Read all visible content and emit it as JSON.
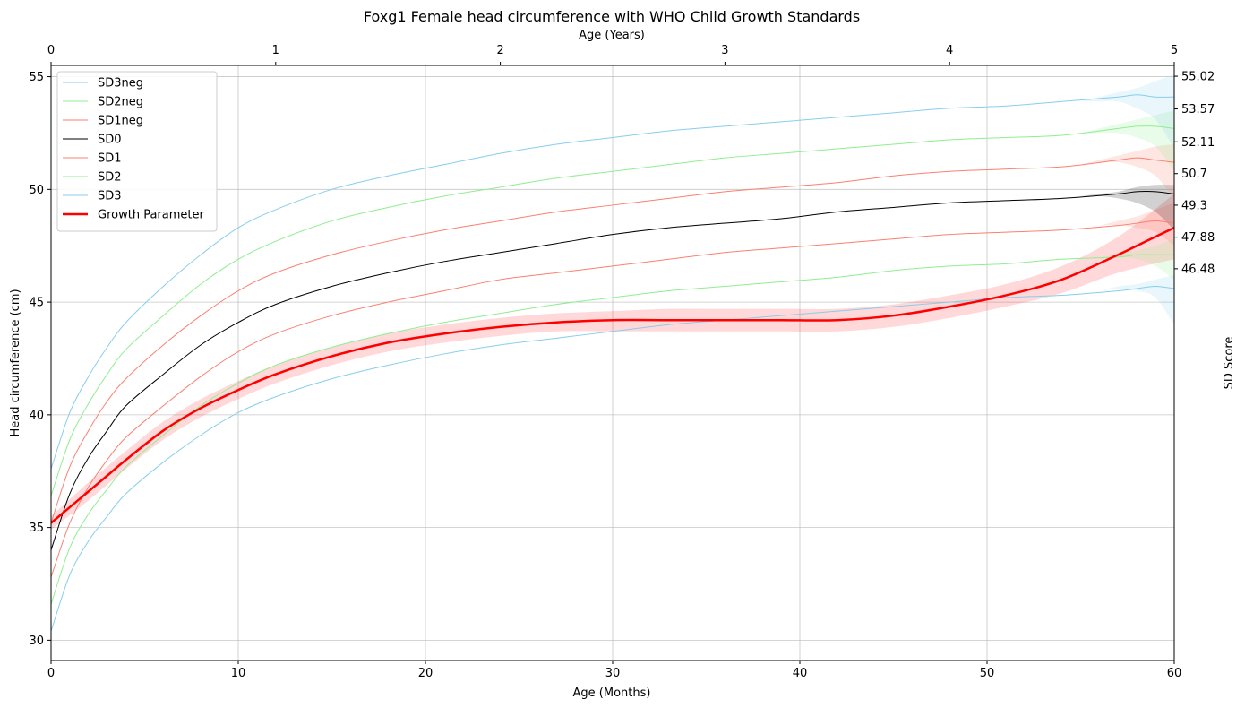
{
  "chart_data": {
    "type": "line",
    "title": "Foxg1 Female head circumference with WHO Child Growth Standards",
    "xlabel": "Age (Months)",
    "ylabel": "Head circumference (cm)",
    "x2label": "Age (Years)",
    "y2label": "SD Score",
    "xlim": [
      0,
      60
    ],
    "ylim": [
      29.1,
      55.5
    ],
    "x2lim": [
      0,
      5
    ],
    "xticks": [
      0,
      10,
      20,
      30,
      40,
      50,
      60
    ],
    "yticks": [
      30,
      35,
      40,
      45,
      50,
      55
    ],
    "x2ticks": [
      0,
      1,
      2,
      3,
      4,
      5
    ],
    "y2ticks": [
      {
        "value": 55.02,
        "label": "55.02"
      },
      {
        "value": 53.57,
        "label": "53.57"
      },
      {
        "value": 52.11,
        "label": "52.11"
      },
      {
        "value": 50.7,
        "label": "50.7"
      },
      {
        "value": 49.3,
        "label": "49.3"
      },
      {
        "value": 47.88,
        "label": "47.88"
      },
      {
        "value": 46.48,
        "label": "46.48"
      }
    ],
    "grid": true,
    "legend_position": "top-left",
    "x": [
      0,
      1,
      2,
      3,
      4,
      6,
      8,
      10,
      12,
      15,
      18,
      21,
      24,
      27,
      30,
      33,
      36,
      39,
      42,
      45,
      48,
      51,
      54,
      57,
      58,
      59,
      60
    ],
    "series": [
      {
        "name": "SD3neg",
        "color": "#87ceeb",
        "width": 1,
        "values": [
          30.4,
          32.9,
          34.4,
          35.5,
          36.5,
          37.9,
          39.1,
          40.1,
          40.8,
          41.6,
          42.2,
          42.7,
          43.1,
          43.4,
          43.7,
          44.0,
          44.2,
          44.4,
          44.6,
          44.8,
          45.0,
          45.2,
          45.3,
          45.5,
          45.6,
          45.7,
          45.6
        ]
      },
      {
        "name": "SD2neg",
        "color": "#90ee90",
        "width": 1,
        "values": [
          31.6,
          34.1,
          35.6,
          36.7,
          37.7,
          39.1,
          40.4,
          41.4,
          42.2,
          43.0,
          43.6,
          44.1,
          44.5,
          44.9,
          45.2,
          45.5,
          45.7,
          45.9,
          46.1,
          46.4,
          46.6,
          46.7,
          46.9,
          47.0,
          47.1,
          47.1,
          47.1
        ]
      },
      {
        "name": "SD1neg",
        "color": "#fa8072",
        "width": 1,
        "values": [
          32.8,
          35.2,
          36.8,
          38.0,
          39.0,
          40.4,
          41.7,
          42.8,
          43.6,
          44.4,
          45.0,
          45.5,
          46.0,
          46.3,
          46.6,
          46.9,
          47.2,
          47.4,
          47.6,
          47.8,
          48.0,
          48.1,
          48.2,
          48.4,
          48.5,
          48.6,
          48.5
        ]
      },
      {
        "name": "SD0",
        "color": "#000000",
        "width": 1,
        "values": [
          34.0,
          36.5,
          38.1,
          39.3,
          40.4,
          41.8,
          43.1,
          44.1,
          44.9,
          45.7,
          46.3,
          46.8,
          47.2,
          47.6,
          48.0,
          48.3,
          48.5,
          48.7,
          49.0,
          49.2,
          49.4,
          49.5,
          49.6,
          49.8,
          49.9,
          49.9,
          49.8
        ]
      },
      {
        "name": "SD1",
        "color": "#fa8072",
        "width": 1,
        "values": [
          35.2,
          37.7,
          39.3,
          40.6,
          41.6,
          43.1,
          44.4,
          45.5,
          46.3,
          47.1,
          47.7,
          48.2,
          48.6,
          49.0,
          49.3,
          49.6,
          49.9,
          50.1,
          50.3,
          50.6,
          50.8,
          50.9,
          51.0,
          51.3,
          51.4,
          51.3,
          51.2
        ]
      },
      {
        "name": "SD2",
        "color": "#90ee90",
        "width": 1,
        "values": [
          36.4,
          38.9,
          40.5,
          41.8,
          42.9,
          44.4,
          45.8,
          46.9,
          47.7,
          48.6,
          49.2,
          49.7,
          50.1,
          50.5,
          50.8,
          51.1,
          51.4,
          51.6,
          51.8,
          52.0,
          52.2,
          52.3,
          52.4,
          52.7,
          52.8,
          52.8,
          52.7
        ]
      },
      {
        "name": "SD3",
        "color": "#87ceeb",
        "width": 1,
        "values": [
          37.6,
          40.1,
          41.7,
          43.0,
          44.1,
          45.7,
          47.1,
          48.3,
          49.1,
          50.0,
          50.6,
          51.1,
          51.6,
          52.0,
          52.3,
          52.6,
          52.8,
          53.0,
          53.2,
          53.4,
          53.6,
          53.7,
          53.9,
          54.1,
          54.2,
          54.1,
          54.1
        ]
      },
      {
        "name": "Growth Parameter",
        "color": "#ff0000",
        "width": 2.5,
        "values": [
          35.2,
          35.9,
          36.6,
          37.3,
          38.0,
          39.3,
          40.3,
          41.1,
          41.8,
          42.6,
          43.2,
          43.6,
          43.9,
          44.1,
          44.2,
          44.2,
          44.2,
          44.2,
          44.2,
          44.4,
          44.8,
          45.3,
          46.0,
          47.1,
          47.5,
          47.9,
          48.3
        ]
      }
    ],
    "bands": [
      {
        "color": "#ff0000",
        "opacity": 0.15,
        "x": [
          0,
          2,
          4,
          6,
          8,
          10,
          12,
          15,
          18,
          21,
          24,
          27,
          30,
          33,
          36,
          39,
          42,
          45,
          48,
          51,
          54,
          57,
          60
        ],
        "lower": [
          34.9,
          36.2,
          37.6,
          38.9,
          39.9,
          40.7,
          41.4,
          42.2,
          42.8,
          43.2,
          43.5,
          43.7,
          43.7,
          43.7,
          43.7,
          43.7,
          43.7,
          43.9,
          44.3,
          44.8,
          45.4,
          46.3,
          46.9
        ],
        "upper": [
          35.5,
          37.0,
          38.4,
          39.7,
          40.7,
          41.5,
          42.2,
          43.0,
          43.6,
          44.0,
          44.3,
          44.5,
          44.6,
          44.7,
          44.7,
          44.7,
          44.7,
          44.9,
          45.3,
          45.8,
          46.6,
          47.9,
          49.8
        ]
      },
      {
        "color": "#87ceeb",
        "opacity": 0.18,
        "x": [
          55,
          56,
          57,
          58,
          59,
          60
        ],
        "lower": [
          45.4,
          45.5,
          45.6,
          45.5,
          45.2,
          44.0
        ],
        "upper": [
          45.4,
          45.5,
          45.7,
          45.8,
          46.0,
          46.2
        ]
      },
      {
        "color": "#90ee90",
        "opacity": 0.2,
        "x": [
          55,
          56,
          57,
          58,
          59,
          60
        ],
        "lower": [
          46.9,
          47.0,
          47.0,
          46.9,
          46.6,
          46.0
        ],
        "upper": [
          46.9,
          47.0,
          47.1,
          47.3,
          47.5,
          47.8
        ]
      },
      {
        "color": "#fa8072",
        "opacity": 0.2,
        "x": [
          55,
          56,
          57,
          58,
          59,
          60
        ],
        "lower": [
          48.3,
          48.4,
          48.4,
          48.3,
          48.1,
          47.5
        ],
        "upper": [
          48.3,
          48.4,
          48.6,
          48.8,
          49.1,
          49.4
        ]
      },
      {
        "color": "#000000",
        "opacity": 0.18,
        "x": [
          55,
          56,
          57,
          58,
          59,
          60
        ],
        "lower": [
          49.7,
          49.7,
          49.6,
          49.4,
          49.0,
          48.2
        ],
        "upper": [
          49.7,
          49.8,
          49.9,
          50.1,
          50.2,
          50.2
        ]
      },
      {
        "color": "#fa8072",
        "opacity": 0.2,
        "x": [
          55,
          56,
          57,
          58,
          59,
          60
        ],
        "lower": [
          51.1,
          51.2,
          51.2,
          51.0,
          50.6,
          49.6
        ],
        "upper": [
          51.1,
          51.3,
          51.5,
          51.7,
          51.9,
          52.0
        ]
      },
      {
        "color": "#90ee90",
        "opacity": 0.2,
        "x": [
          55,
          56,
          57,
          58,
          59,
          60
        ],
        "lower": [
          52.5,
          52.5,
          52.5,
          52.3,
          51.9,
          50.8
        ],
        "upper": [
          52.5,
          52.7,
          52.9,
          53.1,
          53.3,
          53.5
        ]
      },
      {
        "color": "#87ceeb",
        "opacity": 0.18,
        "x": [
          55,
          56,
          57,
          58,
          59,
          60
        ],
        "lower": [
          53.9,
          53.9,
          53.9,
          53.6,
          53.1,
          51.8
        ],
        "upper": [
          53.9,
          54.1,
          54.3,
          54.5,
          54.8,
          55.1
        ]
      }
    ]
  }
}
